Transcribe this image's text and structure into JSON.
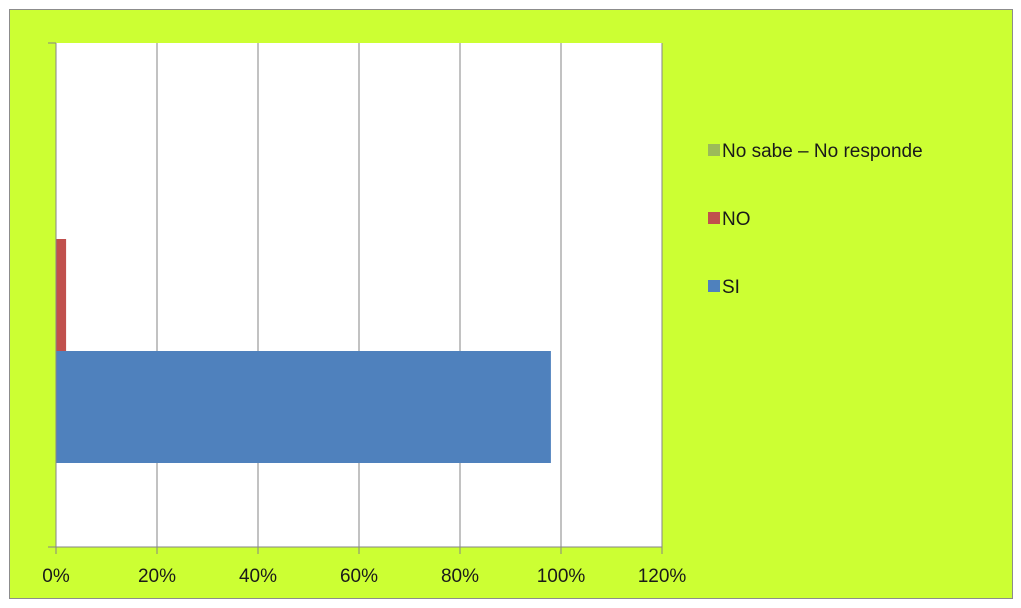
{
  "chart_data": {
    "type": "bar",
    "orientation": "horizontal",
    "stacked": false,
    "title": "",
    "xlabel": "",
    "ylabel": "",
    "categories": [
      ""
    ],
    "xlim": [
      0,
      120
    ],
    "x_tick_labels": [
      "0%",
      "20%",
      "40%",
      "60%",
      "80%",
      "100%",
      "120%"
    ],
    "x_ticks": [
      0,
      20,
      40,
      60,
      80,
      100,
      120
    ],
    "grid": "vertical major gridlines",
    "series": [
      {
        "name": "SI",
        "values": [
          98
        ],
        "color": "#4f81bd"
      },
      {
        "name": "NO",
        "values": [
          2
        ],
        "color": "#c0504d"
      },
      {
        "name": "No sabe – No responde",
        "values": [
          0
        ],
        "color": "#9bbb59"
      }
    ],
    "legend": {
      "position": "right",
      "entries": [
        "No sabe – No responde",
        "NO",
        "SI"
      ]
    },
    "colors": {
      "chart_background": "#ccff33",
      "plot_background": "#ffffff",
      "gridline": "#868686",
      "border": "#8c8c8c"
    }
  }
}
